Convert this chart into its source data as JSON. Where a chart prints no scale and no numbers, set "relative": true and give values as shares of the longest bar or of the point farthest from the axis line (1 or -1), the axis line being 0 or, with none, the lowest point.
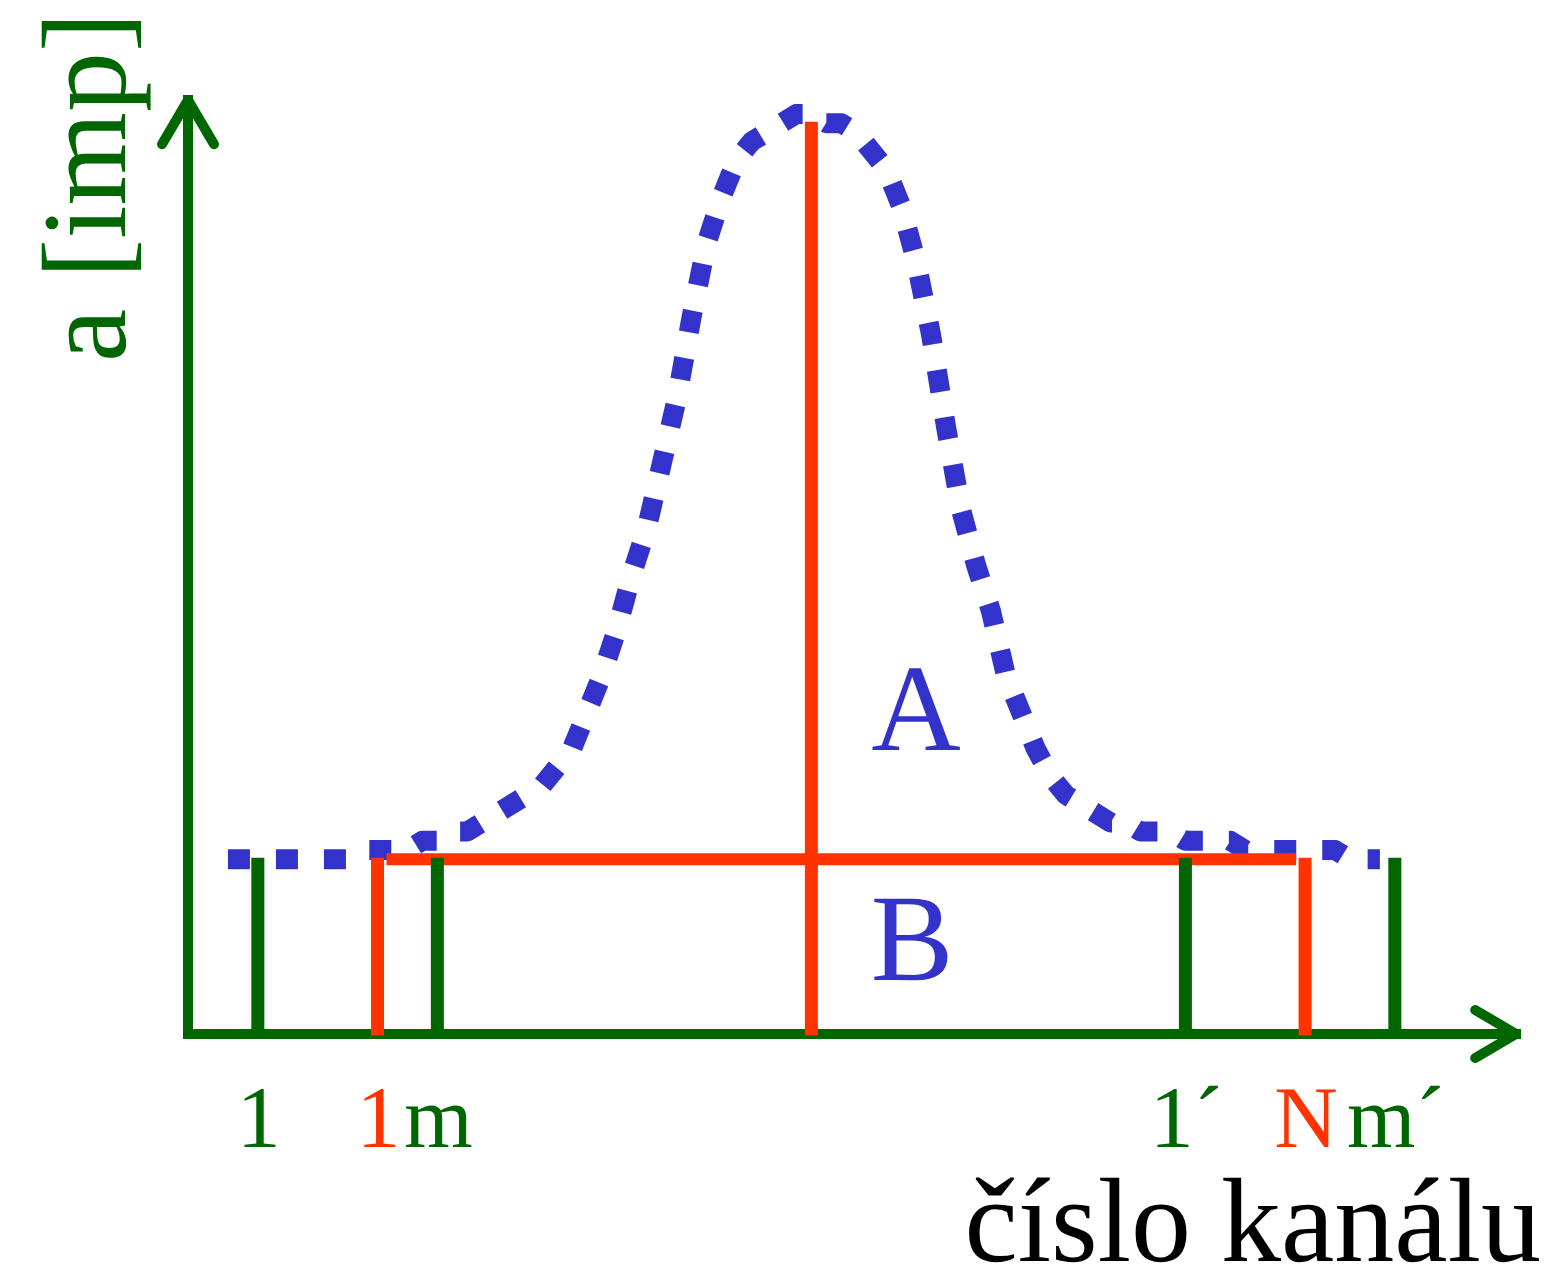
{
  "chart_data": {
    "type": "line",
    "xlabel": "číslo kanálu",
    "ylabel": "a [imp]",
    "relative": true,
    "tick_labels": "x",
    "categories": [
      null,
      null,
      "1",
      null,
      null,
      null,
      null,
      null,
      null,
      null,
      "1",
      null,
      null,
      null,
      "m",
      null,
      null,
      null,
      null,
      null,
      null,
      null,
      null,
      null,
      null,
      null,
      null,
      null,
      null,
      null,
      null,
      null,
      null,
      null,
      null,
      null,
      null,
      null,
      null,
      null,
      null,
      null,
      null,
      null,
      null,
      null,
      null,
      null,
      null,
      null,
      null,
      null,
      null,
      null,
      null,
      null,
      null,
      null,
      null,
      null,
      null,
      null,
      null,
      null,
      "1´",
      null,
      null,
      null,
      null,
      null,
      null,
      null,
      "N",
      null,
      null,
      null,
      null,
      null,
      "m´"
    ],
    "annotations": [
      "A",
      "B"
    ],
    "ref_lines": [
      {
        "axis": "y",
        "value": 0,
        "color": "#006600"
      }
    ],
    "series": [
      {
        "color": "#3333cc",
        "line_style": "dotted",
        "values": [
          0.19,
          0.19,
          0.19,
          0.19,
          0.19,
          0.19,
          0.19,
          0.19,
          0.19,
          0.2,
          0.2,
          0.2,
          0.2,
          0.21,
          0.21,
          0.22,
          0.22,
          0.23,
          0.24,
          0.25,
          0.26,
          0.27,
          0.29,
          0.31,
          0.35,
          0.39,
          0.44,
          0.5,
          0.55,
          0.62,
          0.69,
          0.78,
          0.86,
          0.91,
          0.95,
          0.97,
          0.98,
          0.99,
          1.0,
          1.0,
          0.99,
          0.99,
          0.98,
          0.96,
          0.94,
          0.9,
          0.84,
          0.76,
          0.66,
          0.57,
          0.51,
          0.46,
          0.39,
          0.35,
          0.31,
          0.28,
          0.26,
          0.25,
          0.24,
          0.23,
          0.23,
          0.22,
          0.22,
          0.22,
          0.21,
          0.21,
          0.21,
          0.21,
          0.2,
          0.2,
          0.2,
          0.2,
          0.2,
          0.2,
          0.2,
          0.19,
          0.19,
          0.19,
          null
        ]
      },
      {
        "color": "#ff3300",
        "line_style": "solid",
        "values": [
          null,
          null,
          null,
          null,
          null,
          null,
          null,
          null,
          null,
          null,
          null,
          0.19,
          0.19,
          0.19,
          0.19,
          0.19,
          0.19,
          0.19,
          0.19,
          0.19,
          0.19,
          0.19,
          0.19,
          0.19,
          0.19,
          0.19,
          0.19,
          0.19,
          0.19,
          0.19,
          0.19,
          0.19,
          0.19,
          0.19,
          0.19,
          0.19,
          0.19,
          0.19,
          0.19,
          0.19,
          0.19,
          0.19,
          0.19,
          0.19,
          0.19,
          0.19,
          0.19,
          0.19,
          0.19,
          0.19,
          0.19,
          0.19,
          0.19,
          0.19,
          0.19,
          0.19,
          0.19,
          0.19,
          0.19,
          0.19,
          0.19,
          0.19,
          0.19,
          0.19,
          0.19,
          0.19,
          0.19,
          0.19,
          0.19,
          0.19,
          0.19,
          0.19,
          null,
          null,
          null,
          null,
          null,
          null,
          null
        ]
      },
      {
        "type": "bar",
        "color": "#ff3300",
        "values": [
          null,
          null,
          null,
          null,
          null,
          null,
          null,
          null,
          null,
          null,
          0.19,
          null,
          null,
          null,
          null,
          null,
          null,
          null,
          null,
          null,
          null,
          null,
          null,
          null,
          null,
          null,
          null,
          null,
          null,
          null,
          null,
          null,
          null,
          null,
          null,
          null,
          null,
          null,
          null,
          0.99,
          null,
          null,
          null,
          null,
          null,
          null,
          null,
          null,
          null,
          null,
          null,
          null,
          null,
          null,
          null,
          null,
          null,
          null,
          null,
          null,
          null,
          null,
          null,
          null,
          null,
          null,
          null,
          null,
          null,
          null,
          null,
          null,
          0.19,
          null,
          null,
          null,
          null,
          null,
          null
        ]
      },
      {
        "type": "bar",
        "color": "#006600",
        "values": [
          null,
          null,
          0.19,
          null,
          null,
          null,
          null,
          null,
          null,
          null,
          null,
          null,
          null,
          null,
          0.19,
          null,
          null,
          null,
          null,
          null,
          null,
          null,
          null,
          null,
          null,
          null,
          null,
          null,
          null,
          null,
          null,
          null,
          null,
          null,
          null,
          null,
          null,
          null,
          null,
          null,
          null,
          null,
          null,
          null,
          null,
          null,
          null,
          null,
          null,
          null,
          null,
          null,
          null,
          null,
          null,
          null,
          null,
          null,
          null,
          null,
          null,
          null,
          null,
          null,
          0.19,
          null,
          null,
          null,
          null,
          null,
          null,
          null,
          null,
          null,
          null,
          null,
          null,
          null,
          0.19
        ]
      }
    ]
  }
}
